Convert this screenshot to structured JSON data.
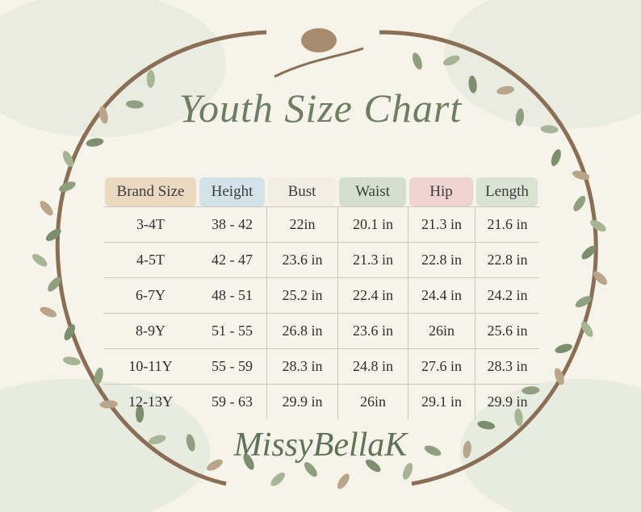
{
  "title": "Youth Size Chart",
  "table": {
    "header": [
      "Brand Size",
      "Height",
      "Bust",
      "Waist",
      "Hip",
      "Length"
    ],
    "rows": [
      [
        "3-4T",
        "38 - 42",
        "22in",
        "20.1 in",
        "21.3 in",
        "21.6 in"
      ],
      [
        "4-5T",
        "42 - 47",
        "23.6 in",
        "21.3 in",
        "22.8 in",
        "22.8 in"
      ],
      [
        "6-7Y",
        "48 - 51",
        "25.2 in",
        "22.4 in",
        "24.4 in",
        "24.2 in"
      ],
      [
        "8-9Y",
        "51 - 55",
        "26.8 in",
        "23.6 in",
        "26in",
        "25.6 in"
      ],
      [
        "10-11Y",
        "55 - 59",
        "28.3 in",
        "24.8 in",
        "27.6 in",
        "28.3 in"
      ],
      [
        "12-13Y",
        "59 - 63",
        "29.9 in",
        "26in",
        "29.1 in",
        "29.9 in"
      ]
    ]
  },
  "brand": "MissyBellaK"
}
